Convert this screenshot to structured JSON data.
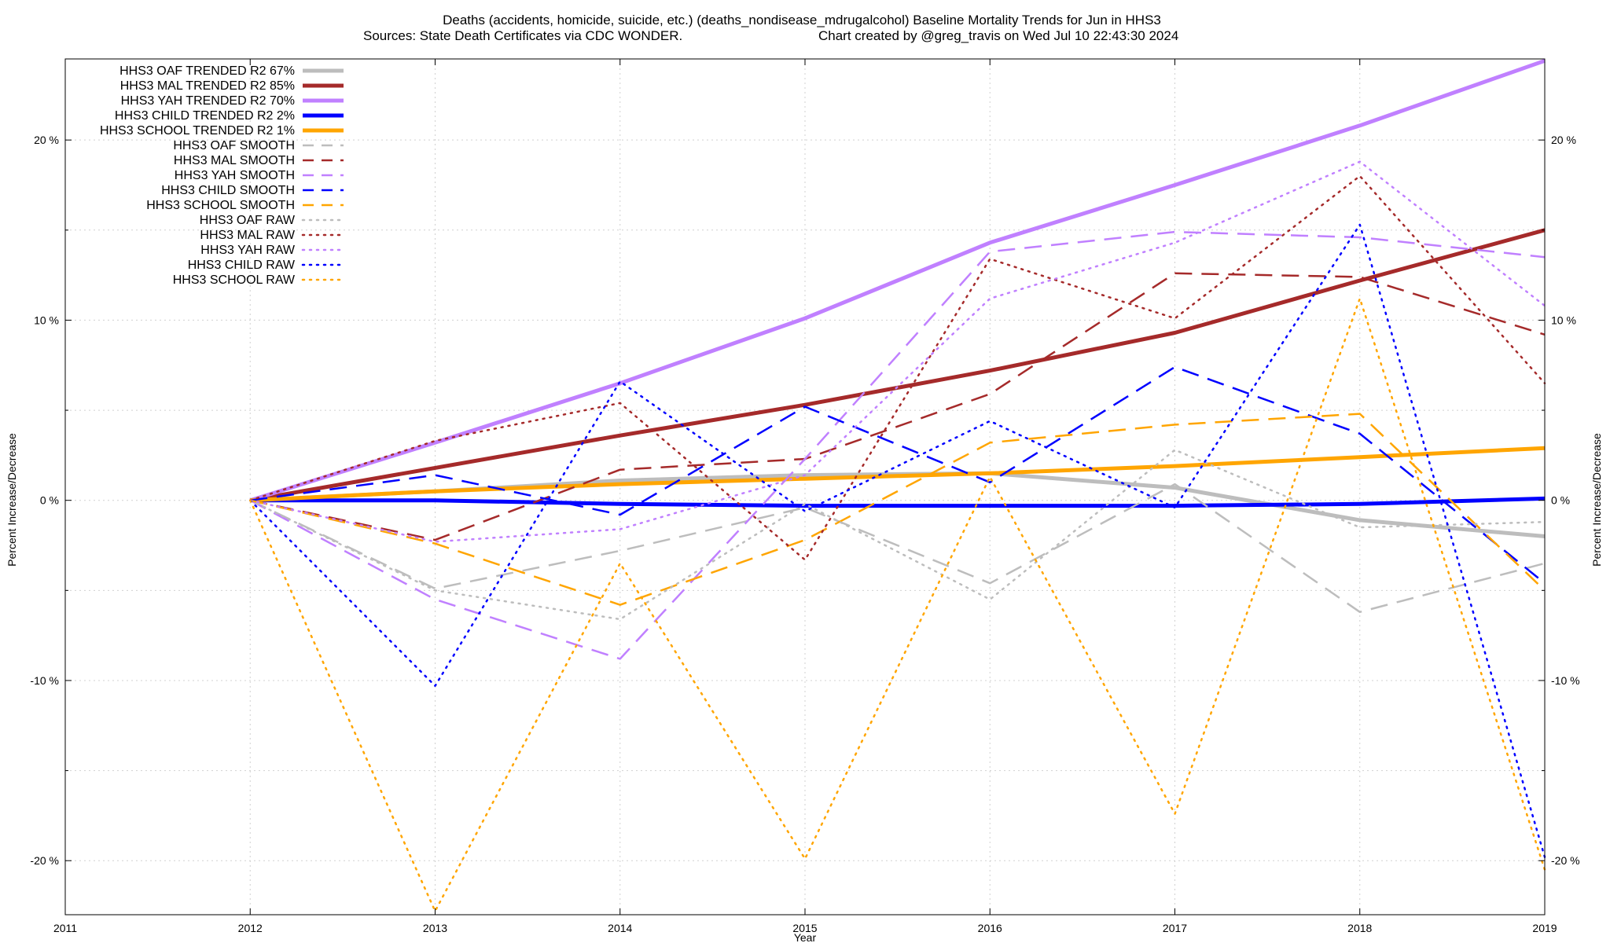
{
  "chart_data": {
    "type": "line",
    "title_line1": "Deaths (accidents, homicide, suicide, etc.) (deaths_nondisease_mdrugalcohol)  Baseline Mortality Trends for Jun in HHS3",
    "title_line2_left": "Sources: State Death Certificates via CDC WONDER.",
    "title_line2_right": "Chart created by @greg_travis on Wed Jul 10 22:43:30 2024",
    "xlabel": "Year",
    "ylabel": "Percent Increase/Decrease",
    "xlim": [
      2011,
      2019
    ],
    "ylim": [
      -23,
      24.5
    ],
    "x_ticks": [
      2011,
      2012,
      2013,
      2014,
      2015,
      2016,
      2017,
      2018,
      2019
    ],
    "y_ticks": [
      {
        "value": 20,
        "label": "20 %"
      },
      {
        "value": 10,
        "label": "10 %"
      },
      {
        "value": 0,
        "label": "0 %"
      },
      {
        "value": -10,
        "label": "-10 %"
      },
      {
        "value": -20,
        "label": "-20 %"
      }
    ],
    "grid": true,
    "legend_position": "top-left",
    "x": [
      2012,
      2013,
      2014,
      2015,
      2016,
      2017,
      2018,
      2019
    ],
    "series": [
      {
        "name": "HHS3 OAF TRENDED R2  67%",
        "style": "solid",
        "color": "#bdbdbd",
        "values": [
          0,
          0.5,
          1.1,
          1.4,
          1.5,
          0.7,
          -1.1,
          -2.0
        ]
      },
      {
        "name": "HHS3 MAL TRENDED R2  85%",
        "style": "solid",
        "color": "#a52a2a",
        "values": [
          0,
          1.8,
          3.6,
          5.3,
          7.2,
          9.3,
          12.2,
          15.0
        ]
      },
      {
        "name": "HHS3 YAH TRENDED R2  70%",
        "style": "solid",
        "color": "#c080ff",
        "values": [
          0,
          3.2,
          6.5,
          10.1,
          14.3,
          17.5,
          20.8,
          24.4
        ]
      },
      {
        "name": "HHS3 CHILD TRENDED R2   2%",
        "style": "solid",
        "color": "#0000ff",
        "values": [
          0,
          0.0,
          -0.2,
          -0.3,
          -0.3,
          -0.3,
          -0.2,
          0.1
        ]
      },
      {
        "name": "HHS3 SCHOOL TRENDED R2   1%",
        "style": "solid",
        "color": "#ffa500",
        "values": [
          0,
          0.5,
          0.9,
          1.2,
          1.5,
          1.9,
          2.4,
          2.9
        ]
      },
      {
        "name": "HHS3 OAF SMOOTH",
        "style": "dash",
        "color": "#bdbdbd",
        "values": [
          0,
          -4.9,
          -2.8,
          -0.4,
          -4.6,
          0.9,
          -6.2,
          -3.5
        ]
      },
      {
        "name": "HHS3 MAL SMOOTH",
        "style": "dash",
        "color": "#a52a2a",
        "values": [
          0,
          -2.2,
          1.7,
          2.3,
          5.9,
          12.6,
          12.4,
          9.2
        ]
      },
      {
        "name": "HHS3 YAH SMOOTH",
        "style": "dash",
        "color": "#c080ff",
        "values": [
          0,
          -5.5,
          -8.8,
          2.3,
          13.8,
          14.9,
          14.6,
          13.5
        ]
      },
      {
        "name": "HHS3 CHILD SMOOTH",
        "style": "dash",
        "color": "#0000ff",
        "values": [
          0,
          1.4,
          -0.8,
          5.2,
          1.0,
          7.4,
          3.7,
          -4.6
        ]
      },
      {
        "name": "HHS3 SCHOOL SMOOTH",
        "style": "dash",
        "color": "#ffa500",
        "values": [
          0,
          -2.4,
          -5.8,
          -2.2,
          3.2,
          4.2,
          4.8,
          -5.0
        ]
      },
      {
        "name": "HHS3 OAF RAW",
        "style": "dot",
        "color": "#bdbdbd",
        "values": [
          0,
          -5.0,
          -6.6,
          -0.2,
          -5.5,
          2.8,
          -1.5,
          -1.2
        ]
      },
      {
        "name": "HHS3 MAL RAW",
        "style": "dot",
        "color": "#a52a2a",
        "values": [
          0,
          3.3,
          5.4,
          -3.3,
          13.4,
          10.1,
          18.0,
          6.5
        ]
      },
      {
        "name": "HHS3 YAH RAW",
        "style": "dot",
        "color": "#c080ff",
        "values": [
          0,
          -2.3,
          -1.6,
          1.4,
          11.2,
          14.3,
          18.8,
          10.8
        ]
      },
      {
        "name": "HHS3 CHILD RAW",
        "style": "dot",
        "color": "#0000ff",
        "values": [
          0,
          -10.3,
          6.6,
          -0.6,
          4.4,
          -0.4,
          15.3,
          -19.8
        ]
      },
      {
        "name": "HHS3 SCHOOL RAW",
        "style": "dot",
        "color": "#ffa500",
        "values": [
          0,
          -22.8,
          -3.5,
          -19.9,
          1.3,
          -17.4,
          11.2,
          -20.5
        ]
      }
    ]
  }
}
